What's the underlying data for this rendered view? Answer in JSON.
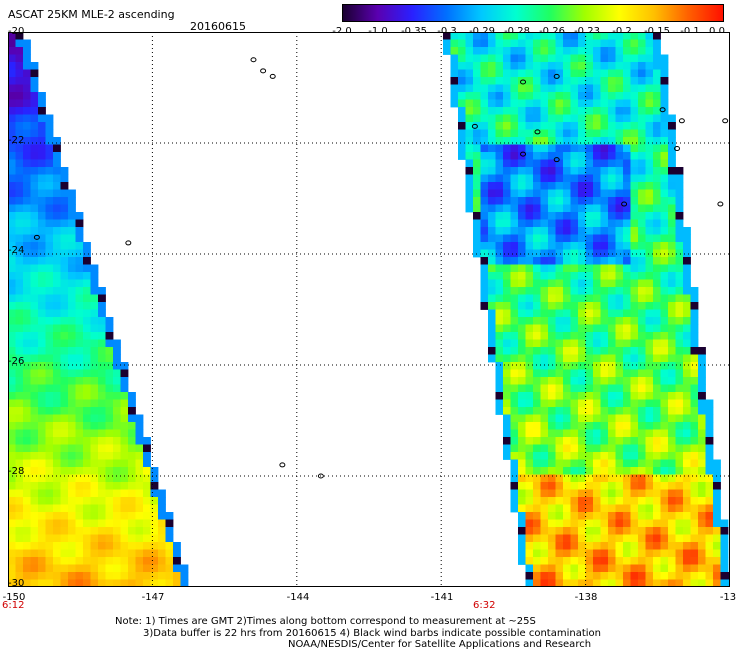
{
  "header": {
    "title": "ASCAT 25KM MLE-2 ascending",
    "date": "20160615"
  },
  "colorbar": {
    "labels": [
      "-2.0",
      "-1.0",
      "-0.35",
      "-0.3",
      "-0.29",
      "-0.28",
      "-0.26",
      "-0.23",
      "-0.2",
      "-0.15",
      "-0.1",
      "0.0"
    ],
    "colors": [
      "#1a0030",
      "#5a00b0",
      "#2a20ff",
      "#0070ff",
      "#00c8ff",
      "#00ffd0",
      "#20ff60",
      "#a0ff00",
      "#ffff00",
      "#ffc000",
      "#ff6000",
      "#ff1000"
    ]
  },
  "chart_data": {
    "type": "heatmap",
    "title": "ASCAT 25KM MLE-2 ascending",
    "x_tick_labels": [
      "-150",
      "-147",
      "-144",
      "-141",
      "-138",
      "-13"
    ],
    "y_tick_labels": [
      "-20",
      "-22",
      "-24",
      "-26",
      "-28",
      "-30"
    ],
    "xlim": [
      -150,
      -135
    ],
    "ylim": [
      -30,
      -20
    ],
    "grid": true,
    "swath_times": [
      "6:12",
      "6:32"
    ]
  },
  "notes": {
    "line1": "Note: 1) Times are GMT 2)Times along bottom correspond to measurement at ~25S",
    "line2": "3)Data buffer is 22 hrs from 20160615 4) Black wind barbs indicate possible contamination",
    "line3": "NOAA/NESDIS/Center for Satellite Applications and Research"
  }
}
